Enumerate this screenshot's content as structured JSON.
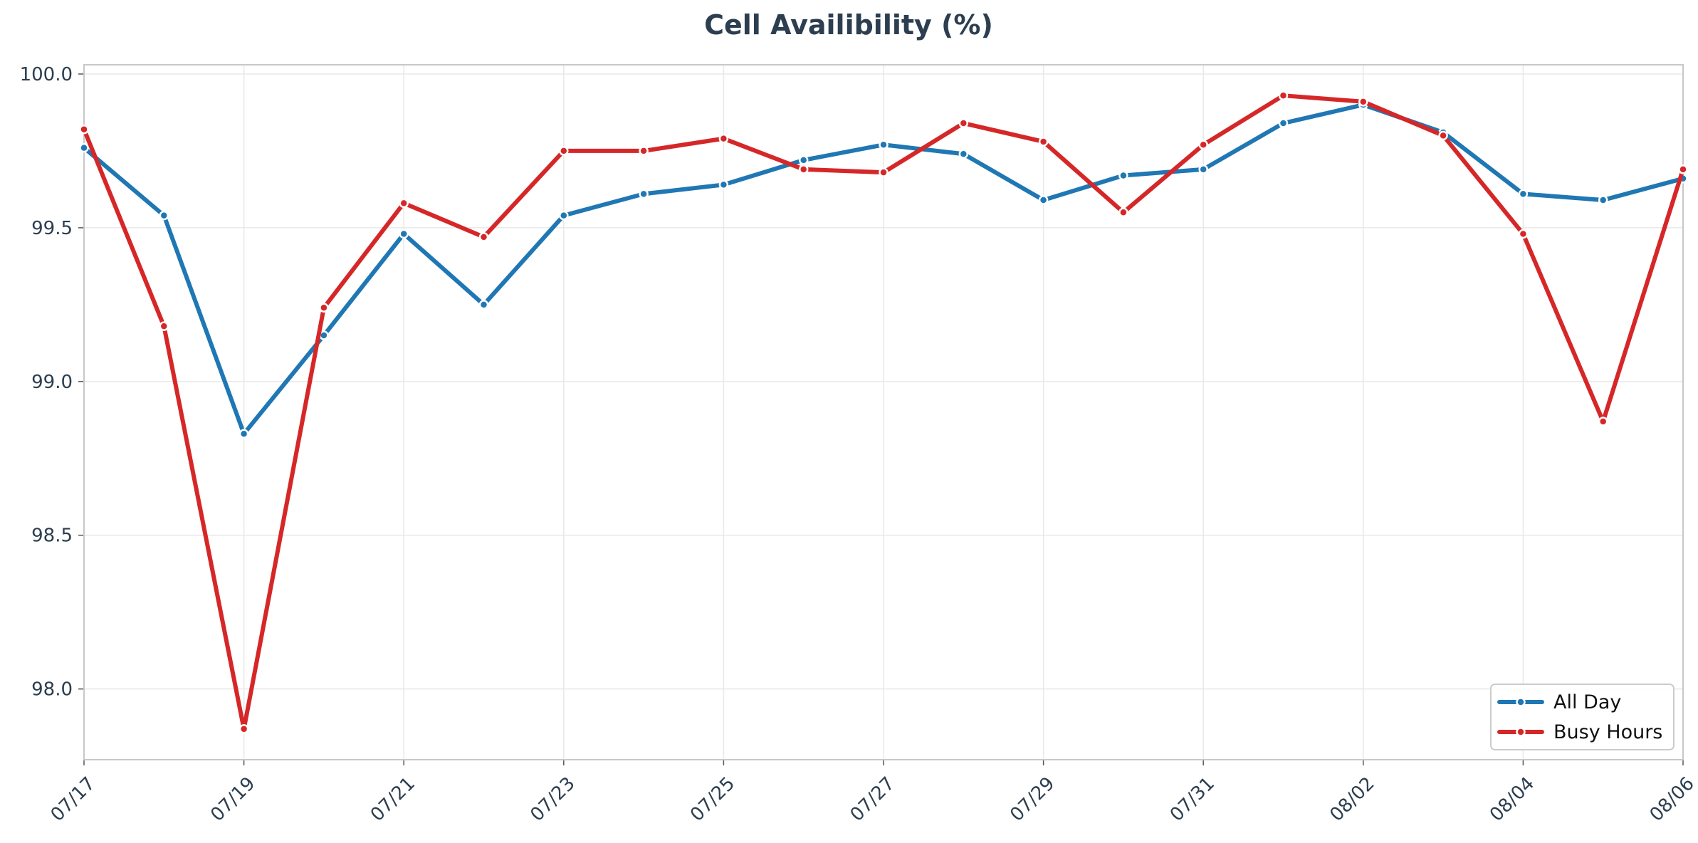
{
  "chart_data": {
    "type": "line",
    "title": "Cell Availibility (%)",
    "xlabel": "",
    "ylabel": "",
    "x": [
      "07/17",
      "07/18",
      "07/19",
      "07/20",
      "07/21",
      "07/22",
      "07/23",
      "07/24",
      "07/25",
      "07/26",
      "07/27",
      "07/28",
      "07/29",
      "07/30",
      "07/31",
      "08/01",
      "08/02",
      "08/03",
      "08/04",
      "08/05",
      "08/06"
    ],
    "x_tick_labels": [
      "07/17",
      "07/19",
      "07/21",
      "07/23",
      "07/25",
      "07/27",
      "07/29",
      "07/31",
      "08/02",
      "08/04",
      "08/06"
    ],
    "ylim": [
      97.77,
      100.03
    ],
    "y_ticks": [
      98.0,
      98.5,
      99.0,
      99.5,
      100.0
    ],
    "y_tick_labels": [
      "98.0",
      "98.5",
      "99.0",
      "99.5",
      "100.0"
    ],
    "grid": true,
    "legend_position": "bottom-right",
    "series": [
      {
        "name": "All Day",
        "color": "#1f77b4",
        "values": [
          99.76,
          99.54,
          98.83,
          99.15,
          99.48,
          99.25,
          99.54,
          99.61,
          99.64,
          99.72,
          99.77,
          99.74,
          99.59,
          99.67,
          99.69,
          99.84,
          99.9,
          99.81,
          99.61,
          99.59,
          99.66
        ]
      },
      {
        "name": "Busy Hours",
        "color": "#d62728",
        "values": [
          99.82,
          99.18,
          97.87,
          99.24,
          99.58,
          99.47,
          99.75,
          99.75,
          99.79,
          99.69,
          99.68,
          99.84,
          99.78,
          99.55,
          99.77,
          99.93,
          99.91,
          99.8,
          99.48,
          98.87,
          99.69
        ]
      }
    ]
  }
}
